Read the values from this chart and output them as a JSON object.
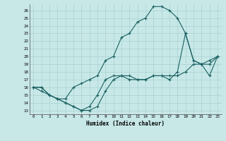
{
  "title": "",
  "xlabel": "Humidex (Indice chaleur)",
  "bg_color": "#c8e8e8",
  "grid_color": "#a8d0d0",
  "line_color": "#1a6060",
  "xlim": [
    -0.5,
    23.5
  ],
  "ylim": [
    12.5,
    26.8
  ],
  "xticks": [
    0,
    1,
    2,
    3,
    4,
    5,
    6,
    7,
    8,
    9,
    10,
    11,
    12,
    13,
    14,
    15,
    16,
    17,
    18,
    19,
    20,
    21,
    22,
    23
  ],
  "yticks": [
    13,
    14,
    15,
    16,
    17,
    18,
    19,
    20,
    21,
    22,
    23,
    24,
    25,
    26
  ],
  "line1_x": [
    0,
    1,
    2,
    3,
    4,
    5,
    6,
    7,
    8,
    9,
    10,
    11,
    12,
    13,
    14,
    15,
    16,
    17,
    18,
    19,
    20,
    21,
    22,
    23
  ],
  "line1_y": [
    16,
    16,
    15,
    14.5,
    14,
    13.5,
    13,
    13,
    13.5,
    15.5,
    17,
    17.5,
    17.5,
    17,
    17,
    17.5,
    17.5,
    17.5,
    17.5,
    18,
    19,
    19,
    19.5,
    20
  ],
  "line2_x": [
    0,
    1,
    2,
    3,
    4,
    5,
    6,
    7,
    8,
    9,
    10,
    11,
    12,
    13,
    14,
    15,
    16,
    17,
    18,
    19,
    20,
    21,
    22,
    23
  ],
  "line2_y": [
    16,
    15.5,
    15,
    14.5,
    14.5,
    16,
    16.5,
    17,
    17.5,
    19.5,
    20,
    22.5,
    23,
    24.5,
    25,
    26.5,
    26.5,
    26,
    25,
    23,
    19.5,
    19,
    17.5,
    20
  ],
  "line3_x": [
    0,
    1,
    2,
    3,
    4,
    5,
    6,
    7,
    8,
    9,
    10,
    11,
    12,
    13,
    14,
    15,
    16,
    17,
    18,
    19,
    20,
    21,
    22,
    23
  ],
  "line3_y": [
    16,
    16,
    15,
    14.5,
    14,
    13.5,
    13,
    13.5,
    15,
    17,
    17.5,
    17.5,
    17,
    17,
    17,
    17.5,
    17.5,
    17,
    18,
    23,
    19.5,
    19,
    19,
    20
  ]
}
